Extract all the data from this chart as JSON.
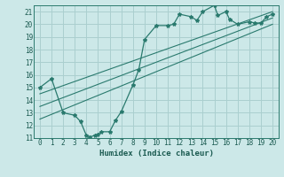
{
  "xlabel": "Humidex (Indice chaleur)",
  "bg_color": "#cce8e8",
  "grid_color": "#aacfcf",
  "line_color": "#2a7a6e",
  "xlim": [
    -0.5,
    20.5
  ],
  "ylim": [
    11,
    21.5
  ],
  "xticks": [
    0,
    1,
    2,
    3,
    4,
    5,
    6,
    7,
    8,
    9,
    10,
    11,
    12,
    13,
    14,
    15,
    16,
    17,
    18,
    19,
    20
  ],
  "yticks": [
    11,
    12,
    13,
    14,
    15,
    16,
    17,
    18,
    19,
    20,
    21
  ],
  "series1_x": [
    0,
    1,
    2,
    3,
    3.5,
    4,
    4.3,
    4.7,
    5,
    5.3,
    6,
    6.5,
    7,
    8,
    8.5,
    9,
    10,
    11,
    11.5,
    12,
    13,
    13.5,
    14,
    15,
    15.3,
    16,
    16.3,
    17,
    18,
    18.5,
    19,
    19.5,
    20
  ],
  "series1_y": [
    15,
    15.7,
    13,
    12.8,
    12.3,
    11.2,
    11.1,
    11.2,
    11.3,
    11.5,
    11.5,
    12.4,
    13.1,
    15.2,
    16.4,
    18.8,
    19.9,
    19.9,
    20.0,
    20.8,
    20.6,
    20.3,
    21.0,
    21.5,
    20.7,
    21.0,
    20.4,
    20.0,
    20.2,
    20.1,
    20.1,
    20.6,
    20.8
  ],
  "line1_x": [
    0,
    20
  ],
  "line1_y": [
    12.5,
    20.0
  ],
  "line2_x": [
    0,
    20
  ],
  "line2_y": [
    13.5,
    20.5
  ],
  "line3_x": [
    0,
    20
  ],
  "line3_y": [
    14.5,
    21.0
  ]
}
